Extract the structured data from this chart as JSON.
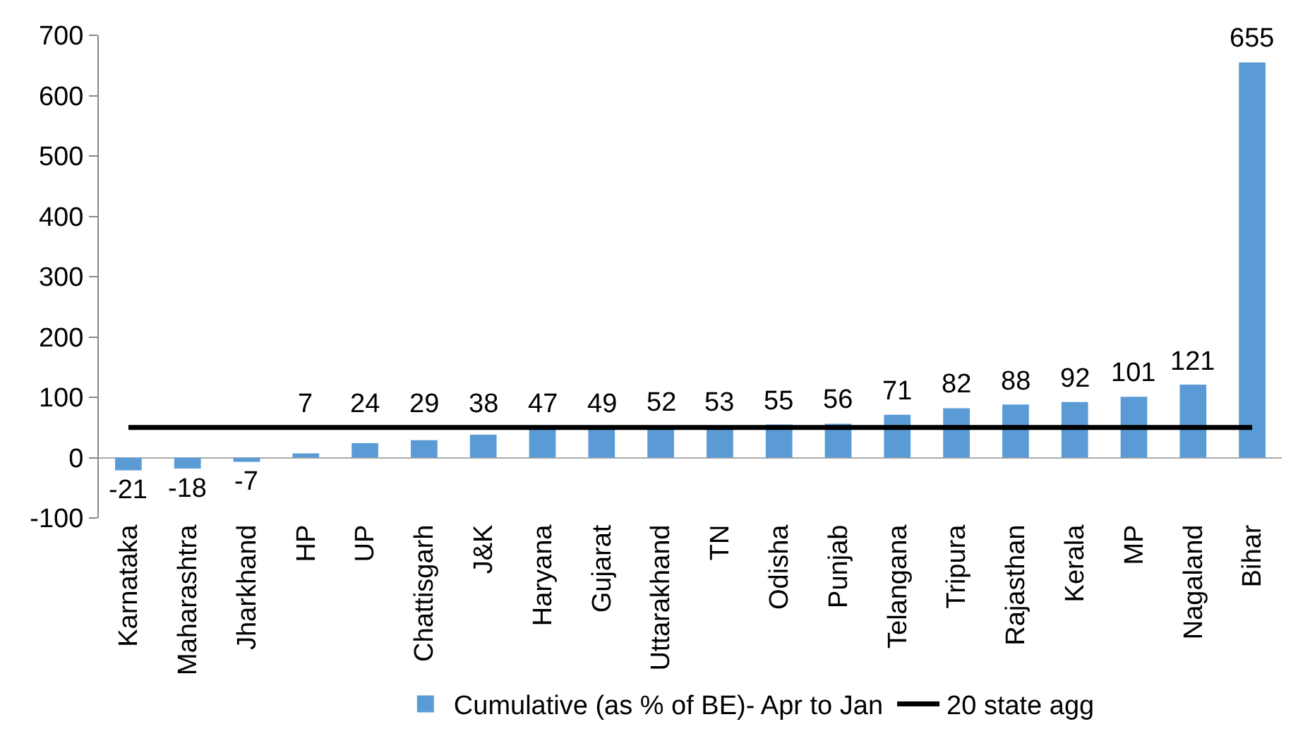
{
  "chart_data": {
    "type": "bar",
    "categories": [
      "Karnataka",
      "Maharashtra",
      "Jharkhand",
      "HP",
      "UP",
      "Chattisgarh",
      "J&K",
      "Haryana",
      "Gujarat",
      "Uttarakhand",
      "TN",
      "Odisha",
      "Punjab",
      "Telangana",
      "Tripura",
      "Rajasthan",
      "Kerala",
      "MP",
      "Nagaland",
      "Bihar"
    ],
    "series": [
      {
        "name": "Cumulative (as % of BE)- Apr to Jan",
        "color": "#5b9bd5",
        "values": [
          -21,
          -18,
          -7,
          7,
          24,
          29,
          38,
          47,
          49,
          52,
          53,
          55,
          56,
          71,
          82,
          88,
          92,
          101,
          121,
          655
        ],
        "value_labels": [
          "-21",
          "-18",
          "-7",
          "7",
          "24",
          "29",
          "38",
          "47",
          "49",
          "52",
          "53",
          "55",
          "56",
          "71",
          "82",
          "88",
          "92",
          "101",
          "121",
          "655"
        ]
      },
      {
        "name": "20 state agg",
        "type": "line",
        "color": "#000000",
        "values": [
          50,
          50,
          50,
          50,
          50,
          50,
          50,
          50,
          50,
          50,
          50,
          50,
          50,
          50,
          50,
          50,
          50,
          50,
          50,
          50
        ]
      }
    ],
    "ylim": [
      -100,
      700
    ],
    "yticks": [
      -100,
      0,
      100,
      200,
      300,
      400,
      500,
      600,
      700
    ],
    "grid": false,
    "legend": "bottom",
    "marker": "none"
  }
}
